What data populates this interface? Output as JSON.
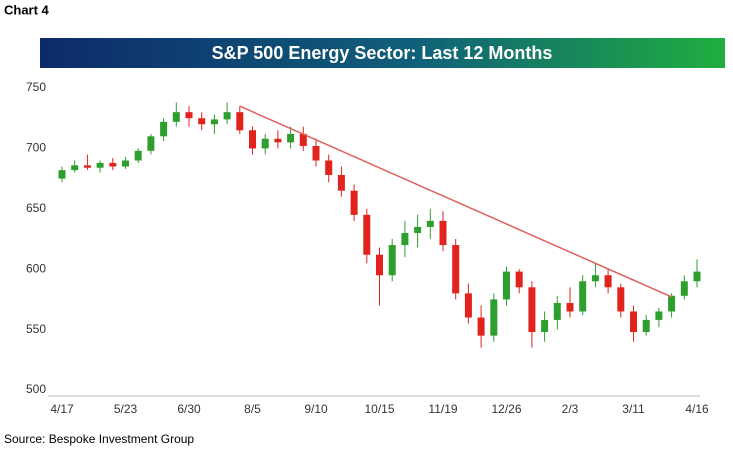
{
  "chart_data": {
    "type": "candlestick",
    "label": "Chart 4",
    "title": "S&P 500 Energy Sector: Last 12 Months",
    "source": "Source: Bespoke Investment Group",
    "categories": [
      "4/17",
      null,
      null,
      null,
      null,
      "5/23",
      null,
      null,
      null,
      null,
      "6/30",
      null,
      null,
      null,
      null,
      "8/5",
      null,
      null,
      null,
      null,
      "9/10",
      null,
      null,
      null,
      null,
      "10/15",
      null,
      null,
      null,
      null,
      "11/19",
      null,
      null,
      null,
      null,
      "12/26",
      null,
      null,
      null,
      null,
      "2/3",
      null,
      null,
      null,
      null,
      "3/11",
      null,
      null,
      null,
      null,
      "4/16"
    ],
    "open": [
      675,
      682,
      686,
      684,
      688,
      685,
      690,
      698,
      710,
      722,
      730,
      725,
      720,
      724,
      730,
      715,
      700,
      708,
      705,
      712,
      702,
      690,
      678,
      665,
      645,
      612,
      595,
      620,
      630,
      635,
      640,
      620,
      580,
      560,
      545,
      575,
      598,
      585,
      548,
      558,
      572,
      565,
      590,
      595,
      585,
      565,
      548,
      558,
      565,
      578,
      590
    ],
    "high": [
      685,
      690,
      695,
      690,
      692,
      693,
      700,
      712,
      725,
      738,
      735,
      730,
      728,
      738,
      735,
      718,
      712,
      715,
      718,
      718,
      708,
      695,
      685,
      670,
      650,
      618,
      625,
      640,
      645,
      650,
      648,
      625,
      588,
      570,
      580,
      602,
      600,
      590,
      565,
      578,
      585,
      595,
      605,
      600,
      588,
      570,
      562,
      568,
      580,
      595,
      608
    ],
    "low": [
      672,
      680,
      682,
      680,
      682,
      683,
      688,
      695,
      706,
      718,
      718,
      715,
      712,
      720,
      712,
      695,
      695,
      700,
      700,
      698,
      685,
      672,
      660,
      640,
      605,
      570,
      590,
      610,
      618,
      625,
      615,
      575,
      555,
      535,
      540,
      570,
      580,
      535,
      540,
      550,
      560,
      562,
      585,
      580,
      560,
      540,
      545,
      552,
      560,
      575,
      585
    ],
    "close": [
      682,
      686,
      684,
      688,
      685,
      690,
      698,
      710,
      722,
      730,
      725,
      720,
      724,
      730,
      715,
      700,
      708,
      705,
      712,
      702,
      690,
      678,
      665,
      645,
      612,
      595,
      620,
      630,
      635,
      640,
      620,
      580,
      560,
      545,
      575,
      598,
      585,
      548,
      558,
      572,
      565,
      590,
      595,
      585,
      565,
      548,
      558,
      565,
      578,
      590,
      598
    ],
    "up_color": "#2e9e2e",
    "down_color": "#e0231c",
    "trendline": {
      "start": [
        14,
        735
      ],
      "end": [
        48,
        577
      ],
      "color": "#e06060"
    },
    "ylim": [
      500,
      750
    ],
    "yticks": [
      500,
      550,
      600,
      650,
      700,
      750
    ]
  }
}
